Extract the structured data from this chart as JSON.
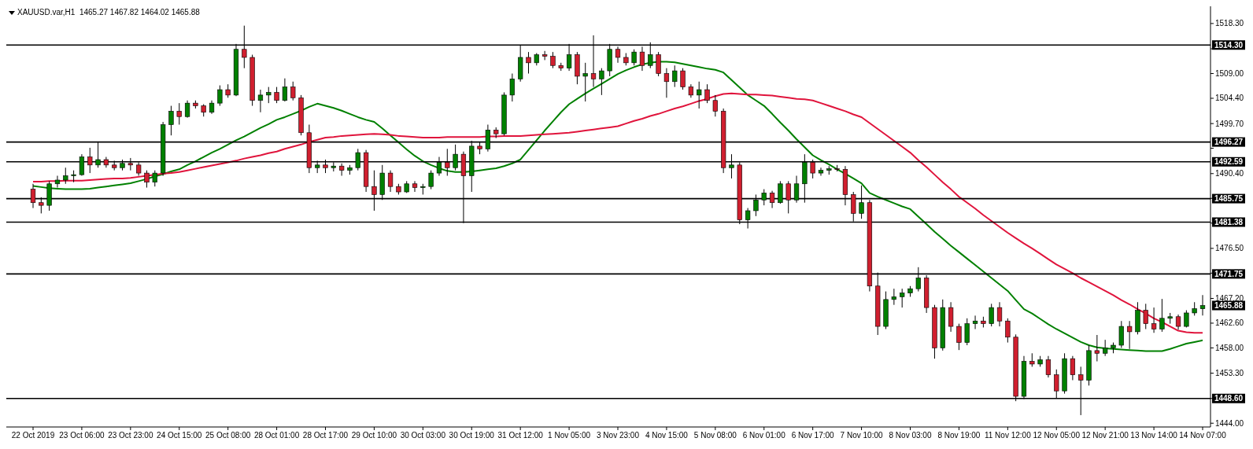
{
  "chart_data": {
    "type": "candlestick",
    "title": "XAUUSD.var,H1  1465.27 1467.82 1464.02 1465.88",
    "categories": [
      "22 Oct 2019",
      null,
      null,
      null,
      null,
      null,
      "23 Oct 06:00",
      null,
      null,
      null,
      null,
      null,
      "23 Oct 23:00",
      null,
      null,
      null,
      null,
      null,
      "24 Oct 15:00",
      null,
      null,
      null,
      null,
      null,
      "25 Oct 08:00",
      null,
      null,
      null,
      null,
      null,
      "28 Oct 01:00",
      null,
      null,
      null,
      null,
      null,
      "28 Oct 17:00",
      null,
      null,
      null,
      null,
      null,
      "29 Oct 10:00",
      null,
      null,
      null,
      null,
      null,
      "30 Oct 03:00",
      null,
      null,
      null,
      null,
      null,
      "30 Oct 19:00",
      null,
      null,
      null,
      null,
      null,
      "31 Oct 12:00",
      null,
      null,
      null,
      null,
      null,
      "1 Nov 05:00",
      null,
      null,
      null,
      null,
      null,
      "3 Nov 23:00",
      null,
      null,
      null,
      null,
      null,
      "4 Nov 15:00",
      null,
      null,
      null,
      null,
      null,
      "5 Nov 08:00",
      null,
      null,
      null,
      null,
      null,
      "6 Nov 01:00",
      null,
      null,
      null,
      null,
      null,
      "6 Nov 17:00",
      null,
      null,
      null,
      null,
      null,
      "7 Nov 10:00",
      null,
      null,
      null,
      null,
      null,
      "8 Nov 03:00",
      null,
      null,
      null,
      null,
      null,
      "8 Nov 19:00",
      null,
      null,
      null,
      null,
      null,
      "11 Nov 12:00",
      null,
      null,
      null,
      null,
      null,
      "12 Nov 05:00",
      null,
      null,
      null,
      null,
      null,
      "12 Nov 21:00",
      null,
      null,
      null,
      null,
      null,
      "13 Nov 14:00",
      null,
      null,
      null,
      null,
      null,
      "14 Nov 07:00"
    ],
    "ohlc": [
      [
        1487.5,
        1488.5,
        1484.0,
        1485.0
      ],
      [
        1485.0,
        1486.0,
        1483.0,
        1484.5
      ],
      [
        1484.5,
        1489.0,
        1483.5,
        1488.5
      ],
      [
        1488.5,
        1490.0,
        1487.8,
        1489.2
      ],
      [
        1489.2,
        1491.5,
        1488.5,
        1490.0
      ],
      [
        1490.0,
        1491.0,
        1488.8,
        1490.2
      ],
      [
        1490.2,
        1494.0,
        1490.0,
        1493.5
      ],
      [
        1493.5,
        1495.2,
        1490.5,
        1492.0
      ],
      [
        1492.0,
        1496.2,
        1491.5,
        1493.0
      ],
      [
        1493.0,
        1493.5,
        1491.5,
        1492.0
      ],
      [
        1492.0,
        1492.8,
        1491.0,
        1491.5
      ],
      [
        1491.5,
        1493.0,
        1491.0,
        1492.3
      ],
      [
        1492.3,
        1493.3,
        1491.0,
        1492.0
      ],
      [
        1492.0,
        1492.5,
        1490.0,
        1490.5
      ],
      [
        1490.5,
        1491.0,
        1487.8,
        1488.8
      ],
      [
        1488.8,
        1491.0,
        1488.0,
        1490.5
      ],
      [
        1490.5,
        1500.0,
        1490.0,
        1499.5
      ],
      [
        1499.5,
        1503.0,
        1497.5,
        1502.0
      ],
      [
        1502.0,
        1503.5,
        1499.5,
        1501.0
      ],
      [
        1501.0,
        1504.0,
        1500.8,
        1503.5
      ],
      [
        1503.5,
        1504.0,
        1502.5,
        1503.0
      ],
      [
        1503.0,
        1503.3,
        1501.0,
        1501.8
      ],
      [
        1501.8,
        1504.0,
        1501.5,
        1503.5
      ],
      [
        1503.5,
        1506.8,
        1503.0,
        1506.0
      ],
      [
        1506.0,
        1507.0,
        1504.5,
        1505.0
      ],
      [
        1505.0,
        1514.5,
        1504.8,
        1513.5
      ],
      [
        1513.5,
        1517.9,
        1510.0,
        1512.0
      ],
      [
        1512.0,
        1512.5,
        1503.0,
        1504.0
      ],
      [
        1504.0,
        1506.0,
        1501.8,
        1505.0
      ],
      [
        1505.0,
        1506.5,
        1503.5,
        1505.5
      ],
      [
        1505.5,
        1506.5,
        1503.5,
        1504.0
      ],
      [
        1504.0,
        1508.1,
        1503.8,
        1506.5
      ],
      [
        1506.5,
        1507.5,
        1504.0,
        1504.5
      ],
      [
        1504.5,
        1505.0,
        1497.5,
        1498.0
      ],
      [
        1498.0,
        1499.5,
        1490.5,
        1491.5
      ],
      [
        1491.5,
        1492.8,
        1490.5,
        1492.0
      ],
      [
        1492.0,
        1493.0,
        1490.5,
        1491.5
      ],
      [
        1491.5,
        1492.5,
        1490.8,
        1491.8
      ],
      [
        1491.8,
        1492.3,
        1490.0,
        1491.0
      ],
      [
        1491.0,
        1492.0,
        1490.2,
        1491.5
      ],
      [
        1491.5,
        1495.0,
        1491.0,
        1494.3
      ],
      [
        1494.3,
        1494.8,
        1487.0,
        1488.0
      ],
      [
        1488.0,
        1491.0,
        1483.5,
        1486.5
      ],
      [
        1486.5,
        1492.0,
        1485.5,
        1490.5
      ],
      [
        1490.5,
        1491.0,
        1487.0,
        1488.0
      ],
      [
        1488.0,
        1488.5,
        1486.5,
        1487.0
      ],
      [
        1487.0,
        1489.0,
        1486.8,
        1488.5
      ],
      [
        1488.5,
        1489.0,
        1487.0,
        1487.8
      ],
      [
        1487.8,
        1488.5,
        1486.5,
        1488.0
      ],
      [
        1488.0,
        1491.0,
        1487.5,
        1490.5
      ],
      [
        1490.5,
        1493.5,
        1490.0,
        1492.5
      ],
      [
        1492.5,
        1495.0,
        1490.0,
        1491.5
      ],
      [
        1491.5,
        1495.8,
        1491.0,
        1494.0
      ],
      [
        1494.0,
        1494.5,
        1481.2,
        1490.0
      ],
      [
        1490.0,
        1496.5,
        1487.0,
        1495.5
      ],
      [
        1495.5,
        1496.3,
        1494.0,
        1495.0
      ],
      [
        1495.0,
        1499.5,
        1494.5,
        1498.5
      ],
      [
        1498.5,
        1499.0,
        1497.0,
        1497.8
      ],
      [
        1497.8,
        1505.5,
        1497.5,
        1505.0
      ],
      [
        1505.0,
        1509.0,
        1503.8,
        1508.0
      ],
      [
        1508.0,
        1514.3,
        1507.5,
        1512.0
      ],
      [
        1512.0,
        1513.0,
        1509.0,
        1511.0
      ],
      [
        1511.0,
        1512.8,
        1510.5,
        1512.5
      ],
      [
        1512.5,
        1513.2,
        1511.5,
        1512.2
      ],
      [
        1512.2,
        1513.0,
        1510.0,
        1510.5
      ],
      [
        1510.5,
        1511.0,
        1509.5,
        1510.0
      ],
      [
        1510.0,
        1514.5,
        1509.5,
        1512.5
      ],
      [
        1512.5,
        1513.0,
        1507.0,
        1508.5
      ],
      [
        1508.5,
        1511.0,
        1503.8,
        1509.0
      ],
      [
        1509.0,
        1516.1,
        1506.5,
        1508.0
      ],
      [
        1508.0,
        1510.0,
        1505.0,
        1509.5
      ],
      [
        1509.5,
        1514.5,
        1508.5,
        1513.5
      ],
      [
        1513.5,
        1514.0,
        1511.0,
        1512.0
      ],
      [
        1512.0,
        1512.8,
        1510.5,
        1511.0
      ],
      [
        1511.0,
        1513.5,
        1510.5,
        1513.0
      ],
      [
        1513.0,
        1514.0,
        1509.5,
        1510.5
      ],
      [
        1510.5,
        1514.8,
        1510.0,
        1512.5
      ],
      [
        1512.5,
        1513.0,
        1508.5,
        1509.0
      ],
      [
        1509.0,
        1510.0,
        1504.5,
        1507.5
      ],
      [
        1507.5,
        1510.5,
        1506.5,
        1509.5
      ],
      [
        1509.5,
        1510.0,
        1506.0,
        1506.5
      ],
      [
        1506.5,
        1507.0,
        1504.5,
        1505.0
      ],
      [
        1505.0,
        1507.5,
        1502.5,
        1506.0
      ],
      [
        1506.0,
        1507.0,
        1503.5,
        1504.0
      ],
      [
        1504.0,
        1505.0,
        1501.0,
        1502.0
      ],
      [
        1502.0,
        1502.5,
        1490.5,
        1491.5
      ],
      [
        1491.5,
        1494.0,
        1489.5,
        1492.0
      ],
      [
        1492.0,
        1492.5,
        1481.0,
        1481.8
      ],
      [
        1481.8,
        1484.0,
        1480.2,
        1483.5
      ],
      [
        1483.5,
        1486.5,
        1482.5,
        1485.5
      ],
      [
        1485.5,
        1487.5,
        1484.5,
        1486.8
      ],
      [
        1486.8,
        1487.2,
        1484.0,
        1485.0
      ],
      [
        1485.0,
        1489.0,
        1484.8,
        1488.5
      ],
      [
        1488.5,
        1489.0,
        1483.0,
        1485.5
      ],
      [
        1485.5,
        1490.0,
        1485.0,
        1488.5
      ],
      [
        1488.5,
        1494.0,
        1485.0,
        1492.5
      ],
      [
        1492.5,
        1493.0,
        1489.5,
        1490.5
      ],
      [
        1490.5,
        1491.5,
        1490.0,
        1491.0
      ],
      [
        1491.0,
        1491.8,
        1490.2,
        1491.3
      ],
      [
        1491.3,
        1492.0,
        1490.8,
        1491.2
      ],
      [
        1491.2,
        1491.8,
        1484.5,
        1486.5
      ],
      [
        1486.5,
        1487.0,
        1481.5,
        1483.0
      ],
      [
        1483.0,
        1488.2,
        1482.0,
        1485.0
      ],
      [
        1485.0,
        1485.5,
        1468.5,
        1469.5
      ],
      [
        1469.5,
        1472.0,
        1460.4,
        1462.0
      ],
      [
        1462.0,
        1468.5,
        1461.5,
        1467.0
      ],
      [
        1467.0,
        1469.0,
        1466.0,
        1467.5
      ],
      [
        1467.5,
        1469.0,
        1465.5,
        1468.2
      ],
      [
        1468.2,
        1469.5,
        1467.5,
        1469.0
      ],
      [
        1469.0,
        1473.0,
        1468.5,
        1471.0
      ],
      [
        1471.0,
        1471.5,
        1464.5,
        1465.5
      ],
      [
        1465.5,
        1466.0,
        1456.0,
        1458.0
      ],
      [
        1458.0,
        1467.0,
        1457.5,
        1465.5
      ],
      [
        1465.5,
        1466.5,
        1461.0,
        1462.0
      ],
      [
        1462.0,
        1462.5,
        1457.6,
        1459.0
      ],
      [
        1459.0,
        1463.5,
        1458.5,
        1462.5
      ],
      [
        1462.5,
        1464.0,
        1461.5,
        1463.0
      ],
      [
        1463.0,
        1463.8,
        1461.8,
        1462.5
      ],
      [
        1462.5,
        1466.2,
        1462.0,
        1465.5
      ],
      [
        1465.5,
        1466.5,
        1462.0,
        1463.0
      ],
      [
        1463.0,
        1463.5,
        1459.0,
        1460.0
      ],
      [
        1460.0,
        1460.5,
        1448.1,
        1449.0
      ],
      [
        1449.0,
        1456.5,
        1448.5,
        1455.5
      ],
      [
        1455.5,
        1457.0,
        1454.5,
        1455.0
      ],
      [
        1455.0,
        1456.5,
        1454.5,
        1455.8
      ],
      [
        1455.8,
        1456.5,
        1452.5,
        1453.0
      ],
      [
        1453.0,
        1454.0,
        1448.6,
        1450.0
      ],
      [
        1450.0,
        1457.0,
        1449.5,
        1456.0
      ],
      [
        1456.0,
        1456.5,
        1452.0,
        1453.0
      ],
      [
        1453.0,
        1454.5,
        1445.5,
        1452.0
      ],
      [
        1452.0,
        1458.5,
        1451.0,
        1457.5
      ],
      [
        1457.5,
        1460.4,
        1455.5,
        1457.0
      ],
      [
        1457.0,
        1459.5,
        1456.5,
        1458.0
      ],
      [
        1458.0,
        1459.0,
        1457.0,
        1458.5
      ],
      [
        1458.5,
        1463.0,
        1458.0,
        1462.0
      ],
      [
        1462.0,
        1463.0,
        1457.8,
        1461.0
      ],
      [
        1461.0,
        1466.5,
        1460.5,
        1465.0
      ],
      [
        1465.0,
        1466.2,
        1461.5,
        1462.5
      ],
      [
        1462.5,
        1465.5,
        1460.8,
        1461.5
      ],
      [
        1461.5,
        1467.1,
        1461.0,
        1463.5
      ],
      [
        1463.5,
        1464.5,
        1462.5,
        1463.8
      ],
      [
        1463.8,
        1464.2,
        1461.4,
        1462.0
      ],
      [
        1462.0,
        1465.0,
        1461.8,
        1464.5
      ],
      [
        1464.5,
        1466.5,
        1464.0,
        1465.3
      ],
      [
        1465.27,
        1467.82,
        1464.02,
        1465.88
      ]
    ],
    "series": [
      {
        "type": "line",
        "color": "#008000",
        "values": [
          1488.1,
          1487.9,
          1487.7,
          1487.6,
          1487.5,
          1487.5,
          1487.5,
          1487.6,
          1487.8,
          1488.0,
          1488.2,
          1488.4,
          1488.6,
          1489.0,
          1489.4,
          1489.9,
          1490.3,
          1490.8,
          1491.2,
          1492.0,
          1492.7,
          1493.5,
          1494.3,
          1495.0,
          1495.8,
          1496.6,
          1497.3,
          1498.1,
          1498.9,
          1499.6,
          1500.4,
          1500.9,
          1501.5,
          1502.1,
          1502.8,
          1503.4,
          1503.0,
          1502.6,
          1502.1,
          1501.5,
          1500.9,
          1500.4,
          1500.0,
          1498.8,
          1497.5,
          1496.2,
          1494.9,
          1493.7,
          1492.7,
          1492.0,
          1491.4,
          1490.9,
          1490.7,
          1490.7,
          1490.8,
          1491.0,
          1491.2,
          1491.4,
          1491.8,
          1492.3,
          1493.0,
          1494.8,
          1496.6,
          1498.4,
          1500.1,
          1501.8,
          1503.3,
          1504.3,
          1505.3,
          1506.2,
          1507.1,
          1508.0,
          1508.9,
          1509.6,
          1510.2,
          1510.7,
          1511.0,
          1511.2,
          1511.2,
          1511.1,
          1510.8,
          1510.5,
          1510.2,
          1509.9,
          1509.7,
          1509.2,
          1507.8,
          1506.4,
          1505.0,
          1504.0,
          1503.0,
          1501.5,
          1499.9,
          1498.4,
          1496.8,
          1495.3,
          1493.8,
          1492.9,
          1492.1,
          1491.2,
          1490.4,
          1489.5,
          1488.6,
          1486.8,
          1486.1,
          1485.5,
          1484.9,
          1484.3,
          1483.8,
          1482.4,
          1481.0,
          1479.6,
          1478.3,
          1477.0,
          1475.8,
          1474.6,
          1473.4,
          1472.2,
          1471.0,
          1469.8,
          1468.6,
          1466.9,
          1465.2,
          1464.4,
          1463.4,
          1462.4,
          1461.5,
          1460.7,
          1459.9,
          1459.1,
          1458.5,
          1458.1,
          1457.9,
          1457.8,
          1457.7,
          1457.6,
          1457.5,
          1457.4,
          1457.4,
          1457.4,
          1457.8,
          1458.3,
          1458.8,
          1459.1,
          1459.4
        ]
      },
      {
        "type": "line",
        "color": "#e0143c",
        "values": [
          1488.9,
          1488.9,
          1489.0,
          1489.0,
          1489.1,
          1489.1,
          1489.1,
          1489.2,
          1489.3,
          1489.4,
          1489.5,
          1489.5,
          1489.6,
          1489.8,
          1490.0,
          1490.2,
          1490.4,
          1490.5,
          1490.7,
          1491.0,
          1491.3,
          1491.6,
          1491.9,
          1492.2,
          1492.5,
          1492.8,
          1493.2,
          1493.5,
          1493.8,
          1494.2,
          1494.5,
          1495.0,
          1495.4,
          1495.8,
          1496.3,
          1496.7,
          1497.1,
          1497.2,
          1497.4,
          1497.5,
          1497.6,
          1497.7,
          1497.8,
          1497.7,
          1497.6,
          1497.4,
          1497.3,
          1497.2,
          1497.1,
          1497.1,
          1497.1,
          1497.2,
          1497.2,
          1497.2,
          1497.2,
          1497.2,
          1497.3,
          1497.3,
          1497.4,
          1497.4,
          1497.4,
          1497.5,
          1497.6,
          1497.7,
          1497.8,
          1497.9,
          1498.0,
          1498.2,
          1498.4,
          1498.6,
          1498.8,
          1499.0,
          1499.2,
          1499.7,
          1500.2,
          1500.6,
          1501.1,
          1501.5,
          1502.0,
          1502.5,
          1502.9,
          1503.4,
          1503.9,
          1504.3,
          1504.8,
          1505.2,
          1505.3,
          1505.2,
          1505.1,
          1505.1,
          1505.0,
          1504.9,
          1504.7,
          1504.5,
          1504.3,
          1504.2,
          1504.0,
          1503.5,
          1503.0,
          1502.5,
          1502.0,
          1501.4,
          1500.9,
          1499.8,
          1498.7,
          1497.6,
          1496.5,
          1495.4,
          1494.3,
          1492.9,
          1491.6,
          1490.2,
          1488.8,
          1487.5,
          1486.1,
          1485.0,
          1483.9,
          1482.7,
          1481.6,
          1480.5,
          1479.4,
          1478.4,
          1477.4,
          1476.5,
          1475.5,
          1474.5,
          1473.5,
          1472.7,
          1471.9,
          1471.0,
          1470.2,
          1469.4,
          1468.6,
          1467.8,
          1466.9,
          1466.1,
          1465.2,
          1464.4,
          1463.5,
          1462.8,
          1462.0,
          1461.2,
          1460.9,
          1460.8,
          1460.8
        ]
      }
    ],
    "ylim": [
      1443.3,
      1521.5
    ],
    "yticks": [
      {
        "value": 1518.3,
        "label": "1518.30"
      },
      {
        "value": 1513.6,
        "label": null
      },
      {
        "value": 1509,
        "label": "1509.00"
      },
      {
        "value": 1504.4,
        "label": "1504.40"
      },
      {
        "value": 1499.7,
        "label": "1499.70"
      },
      {
        "value": 1495.1,
        "label": null
      },
      {
        "value": 1490.4,
        "label": "1490.40"
      },
      {
        "value": 1485.8,
        "label": null
      },
      {
        "value": 1481.2,
        "label": null
      },
      {
        "value": 1476.5,
        "label": "1476.50"
      },
      {
        "value": 1471.9,
        "label": null
      },
      {
        "value": 1467.2,
        "label": "1467.20"
      },
      {
        "value": 1462.6,
        "label": "1462.60"
      },
      {
        "value": 1458,
        "label": "1458.00"
      },
      {
        "value": 1453.3,
        "label": "1453.30"
      },
      {
        "value": 1448.6,
        "label": null
      },
      {
        "value": 1444,
        "label": "1444.00"
      }
    ],
    "ref_lines": [
      {
        "axis": "y",
        "value": 1514.3,
        "label": "1514.30",
        "color": "#000000"
      },
      {
        "axis": "y",
        "value": 1496.27,
        "label": "1496.27",
        "color": "#000000"
      },
      {
        "axis": "y",
        "value": 1492.59,
        "label": "1492.59",
        "color": "#000000"
      },
      {
        "axis": "y",
        "value": 1485.75,
        "label": "1485.75",
        "color": "#000000"
      },
      {
        "axis": "y",
        "value": 1481.38,
        "label": "1481.38",
        "color": "#000000"
      },
      {
        "axis": "y",
        "value": 1471.75,
        "label": "1471.75",
        "color": "#000000"
      },
      {
        "axis": "y",
        "value": 1448.6,
        "label": "1448.60",
        "color": "#000000"
      }
    ],
    "annotations": [
      "1465.88"
    ]
  }
}
